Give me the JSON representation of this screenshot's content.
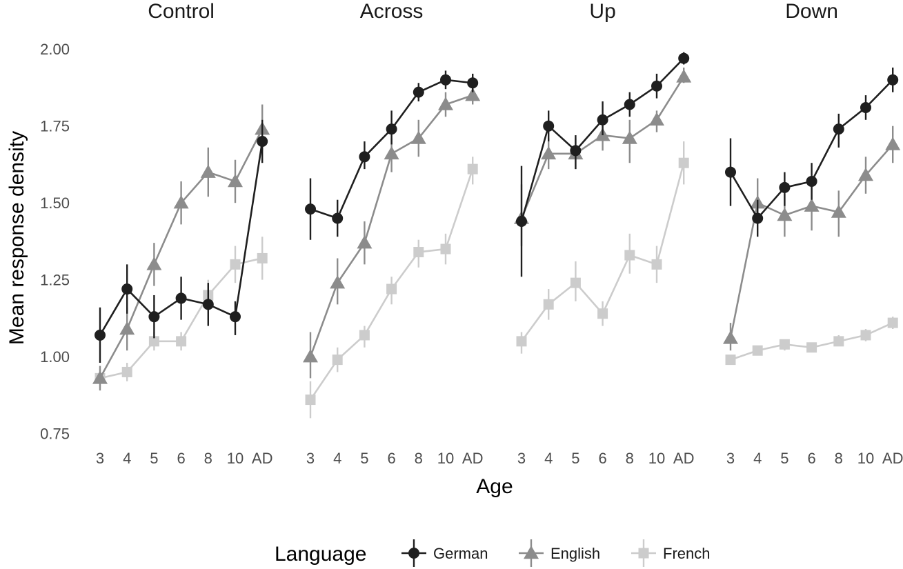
{
  "chart_data": {
    "type": "line",
    "ylabel": "Mean response density",
    "xlabel": "Age",
    "categories": [
      "3",
      "4",
      "5",
      "6",
      "8",
      "10",
      "AD"
    ],
    "yticks": [
      "0.75",
      "1.00",
      "1.25",
      "1.50",
      "1.75",
      "2.00"
    ],
    "yticks_values": [
      0.75,
      1.0,
      1.25,
      1.5,
      1.75,
      2.0
    ],
    "ylim": [
      0.72,
      2.07
    ],
    "grid": false,
    "legend": {
      "title": "Language",
      "placement": "bottom",
      "entries": [
        "German",
        "English",
        "French"
      ]
    },
    "colors": {
      "German": "#1f1f1f",
      "English": "#8c8c8c",
      "French": "#cccccc"
    },
    "markers": {
      "German": "circle",
      "English": "triangle",
      "French": "square"
    },
    "facets": [
      {
        "title": "Control",
        "series": [
          {
            "name": "German",
            "values": [
              1.07,
              1.22,
              1.13,
              1.19,
              1.17,
              1.13,
              1.7
            ],
            "lower": [
              0.98,
              1.14,
              1.06,
              1.12,
              1.1,
              1.07,
              1.63
            ],
            "upper": [
              1.16,
              1.3,
              1.2,
              1.26,
              1.24,
              1.18,
              1.77
            ]
          },
          {
            "name": "English",
            "values": [
              0.93,
              1.09,
              1.3,
              1.5,
              1.6,
              1.57,
              1.74
            ],
            "lower": [
              0.89,
              1.02,
              1.23,
              1.43,
              1.52,
              1.5,
              1.67
            ],
            "upper": [
              0.97,
              1.16,
              1.37,
              1.57,
              1.68,
              1.64,
              1.82
            ]
          },
          {
            "name": "French",
            "values": [
              0.93,
              0.95,
              1.05,
              1.05,
              1.2,
              1.3,
              1.32
            ],
            "lower": [
              0.9,
              0.92,
              1.02,
              1.02,
              1.15,
              1.24,
              1.25
            ],
            "upper": [
              0.96,
              0.98,
              1.08,
              1.08,
              1.25,
              1.36,
              1.39
            ]
          }
        ]
      },
      {
        "title": "Across",
        "series": [
          {
            "name": "German",
            "values": [
              1.48,
              1.45,
              1.65,
              1.74,
              1.86,
              1.9,
              1.89
            ],
            "lower": [
              1.38,
              1.39,
              1.61,
              1.69,
              1.83,
              1.87,
              1.86
            ],
            "upper": [
              1.58,
              1.51,
              1.7,
              1.8,
              1.89,
              1.93,
              1.92
            ]
          },
          {
            "name": "English",
            "values": [
              1.0,
              1.24,
              1.37,
              1.66,
              1.71,
              1.82,
              1.85
            ],
            "lower": [
              0.93,
              1.17,
              1.3,
              1.6,
              1.65,
              1.78,
              1.82
            ],
            "upper": [
              1.08,
              1.32,
              1.44,
              1.71,
              1.77,
              1.86,
              1.88
            ]
          },
          {
            "name": "French",
            "values": [
              0.86,
              0.99,
              1.07,
              1.22,
              1.34,
              1.35,
              1.61
            ],
            "lower": [
              0.8,
              0.95,
              1.03,
              1.17,
              1.29,
              1.3,
              1.56
            ],
            "upper": [
              0.92,
              1.03,
              1.1,
              1.26,
              1.38,
              1.4,
              1.65
            ]
          }
        ]
      },
      {
        "title": "Up",
        "series": [
          {
            "name": "German",
            "values": [
              1.44,
              1.75,
              1.67,
              1.77,
              1.82,
              1.88,
              1.97
            ],
            "lower": [
              1.26,
              1.7,
              1.61,
              1.72,
              1.78,
              1.84,
              1.95
            ],
            "upper": [
              1.62,
              1.8,
              1.72,
              1.83,
              1.86,
              1.92,
              1.99
            ]
          },
          {
            "name": "English",
            "values": [
              1.45,
              1.66,
              1.66,
              1.72,
              1.71,
              1.77,
              1.91
            ],
            "lower": [
              1.36,
              1.61,
              1.61,
              1.67,
              1.63,
              1.73,
              1.89
            ],
            "upper": [
              1.56,
              1.71,
              1.71,
              1.77,
              1.77,
              1.8,
              1.94
            ]
          },
          {
            "name": "French",
            "values": [
              1.05,
              1.17,
              1.24,
              1.14,
              1.33,
              1.3,
              1.63
            ],
            "lower": [
              1.01,
              1.12,
              1.18,
              1.1,
              1.27,
              1.24,
              1.56
            ],
            "upper": [
              1.08,
              1.22,
              1.31,
              1.18,
              1.4,
              1.36,
              1.7
            ]
          }
        ]
      },
      {
        "title": "Down",
        "series": [
          {
            "name": "German",
            "values": [
              1.6,
              1.45,
              1.55,
              1.57,
              1.74,
              1.81,
              1.9
            ],
            "lower": [
              1.49,
              1.39,
              1.49,
              1.51,
              1.68,
              1.77,
              1.86
            ],
            "upper": [
              1.71,
              1.51,
              1.6,
              1.63,
              1.79,
              1.85,
              1.94
            ]
          },
          {
            "name": "English",
            "values": [
              1.06,
              1.5,
              1.46,
              1.49,
              1.47,
              1.59,
              1.69
            ],
            "lower": [
              1.02,
              1.45,
              1.39,
              1.41,
              1.39,
              1.53,
              1.63
            ],
            "upper": [
              1.11,
              1.58,
              1.53,
              1.56,
              1.54,
              1.65,
              1.75
            ]
          },
          {
            "name": "French",
            "values": [
              0.99,
              1.02,
              1.04,
              1.03,
              1.05,
              1.07,
              1.11
            ],
            "lower": [
              0.98,
              1.01,
              1.02,
              1.02,
              1.04,
              1.05,
              1.09
            ],
            "upper": [
              1.0,
              1.03,
              1.05,
              1.04,
              1.07,
              1.09,
              1.13
            ]
          }
        ]
      }
    ]
  }
}
